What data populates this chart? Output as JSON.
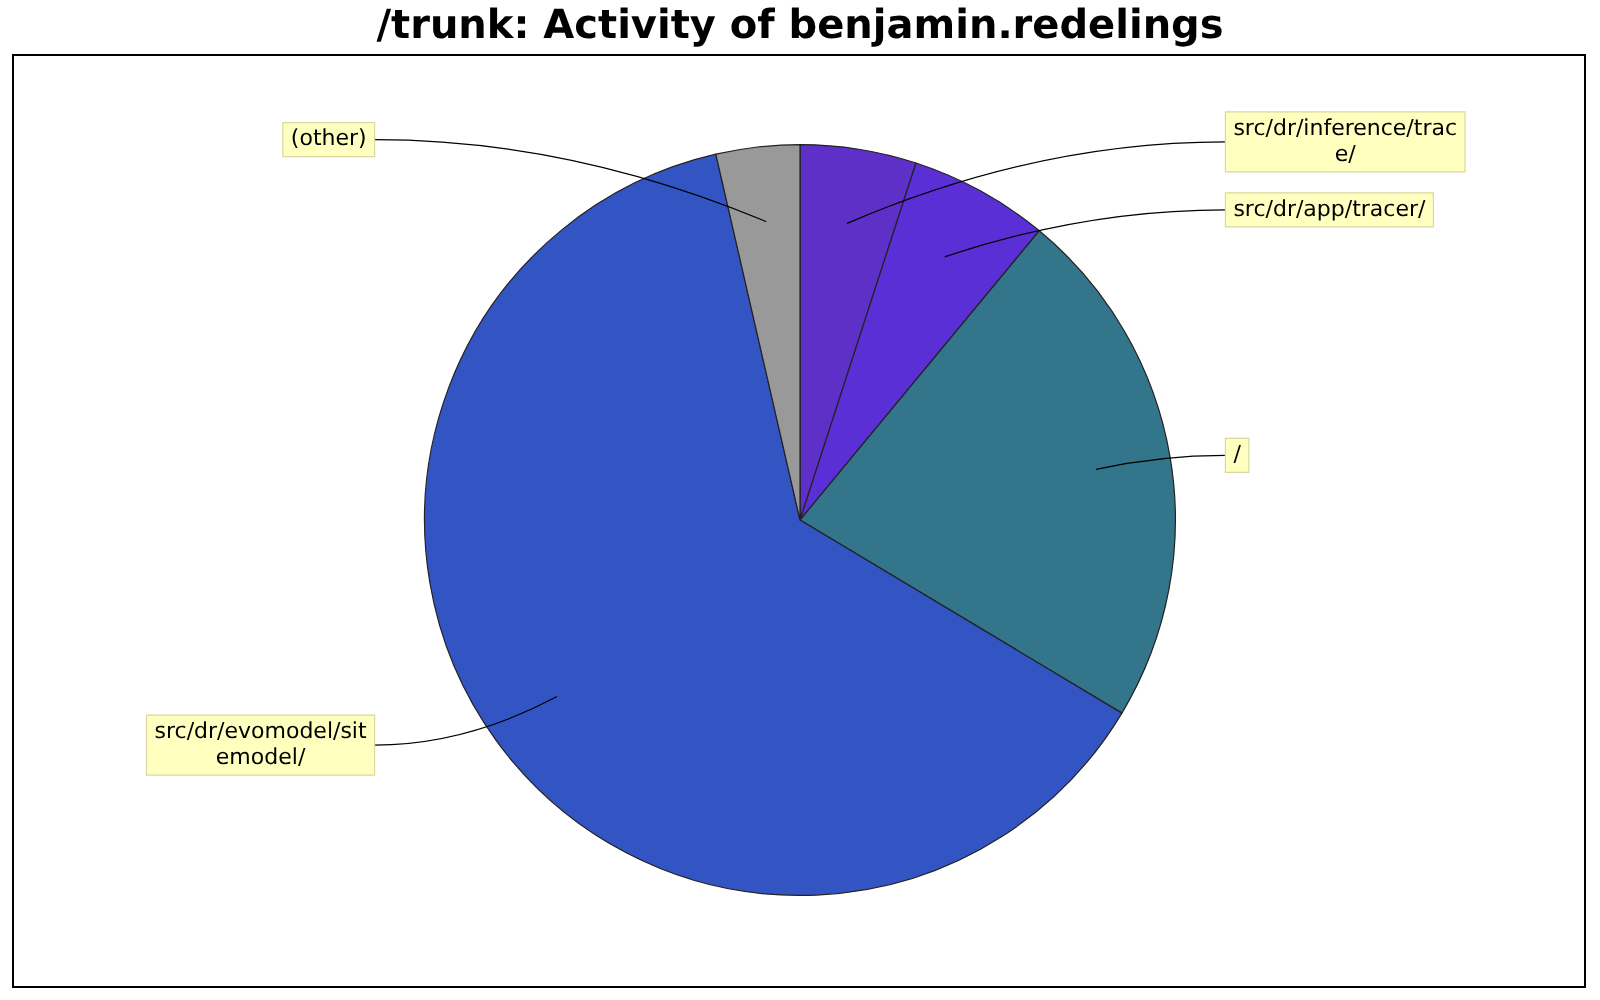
{
  "chart_data": {
    "type": "pie",
    "title": "/trunk: Activity of benjamin.redelings",
    "categories": [
      "src/dr/inference/trace/",
      "src/dr/app/tracer/",
      "/",
      "src/dr/evomodel/sitemodel/",
      "(other)"
    ],
    "values": [
      5,
      6,
      22.6,
      62.8,
      3.6
    ],
    "colors": [
      "#5f30c8",
      "#5b2fd6",
      "#33758a",
      "#3355c4",
      "#999999"
    ],
    "legend": false
  }
}
